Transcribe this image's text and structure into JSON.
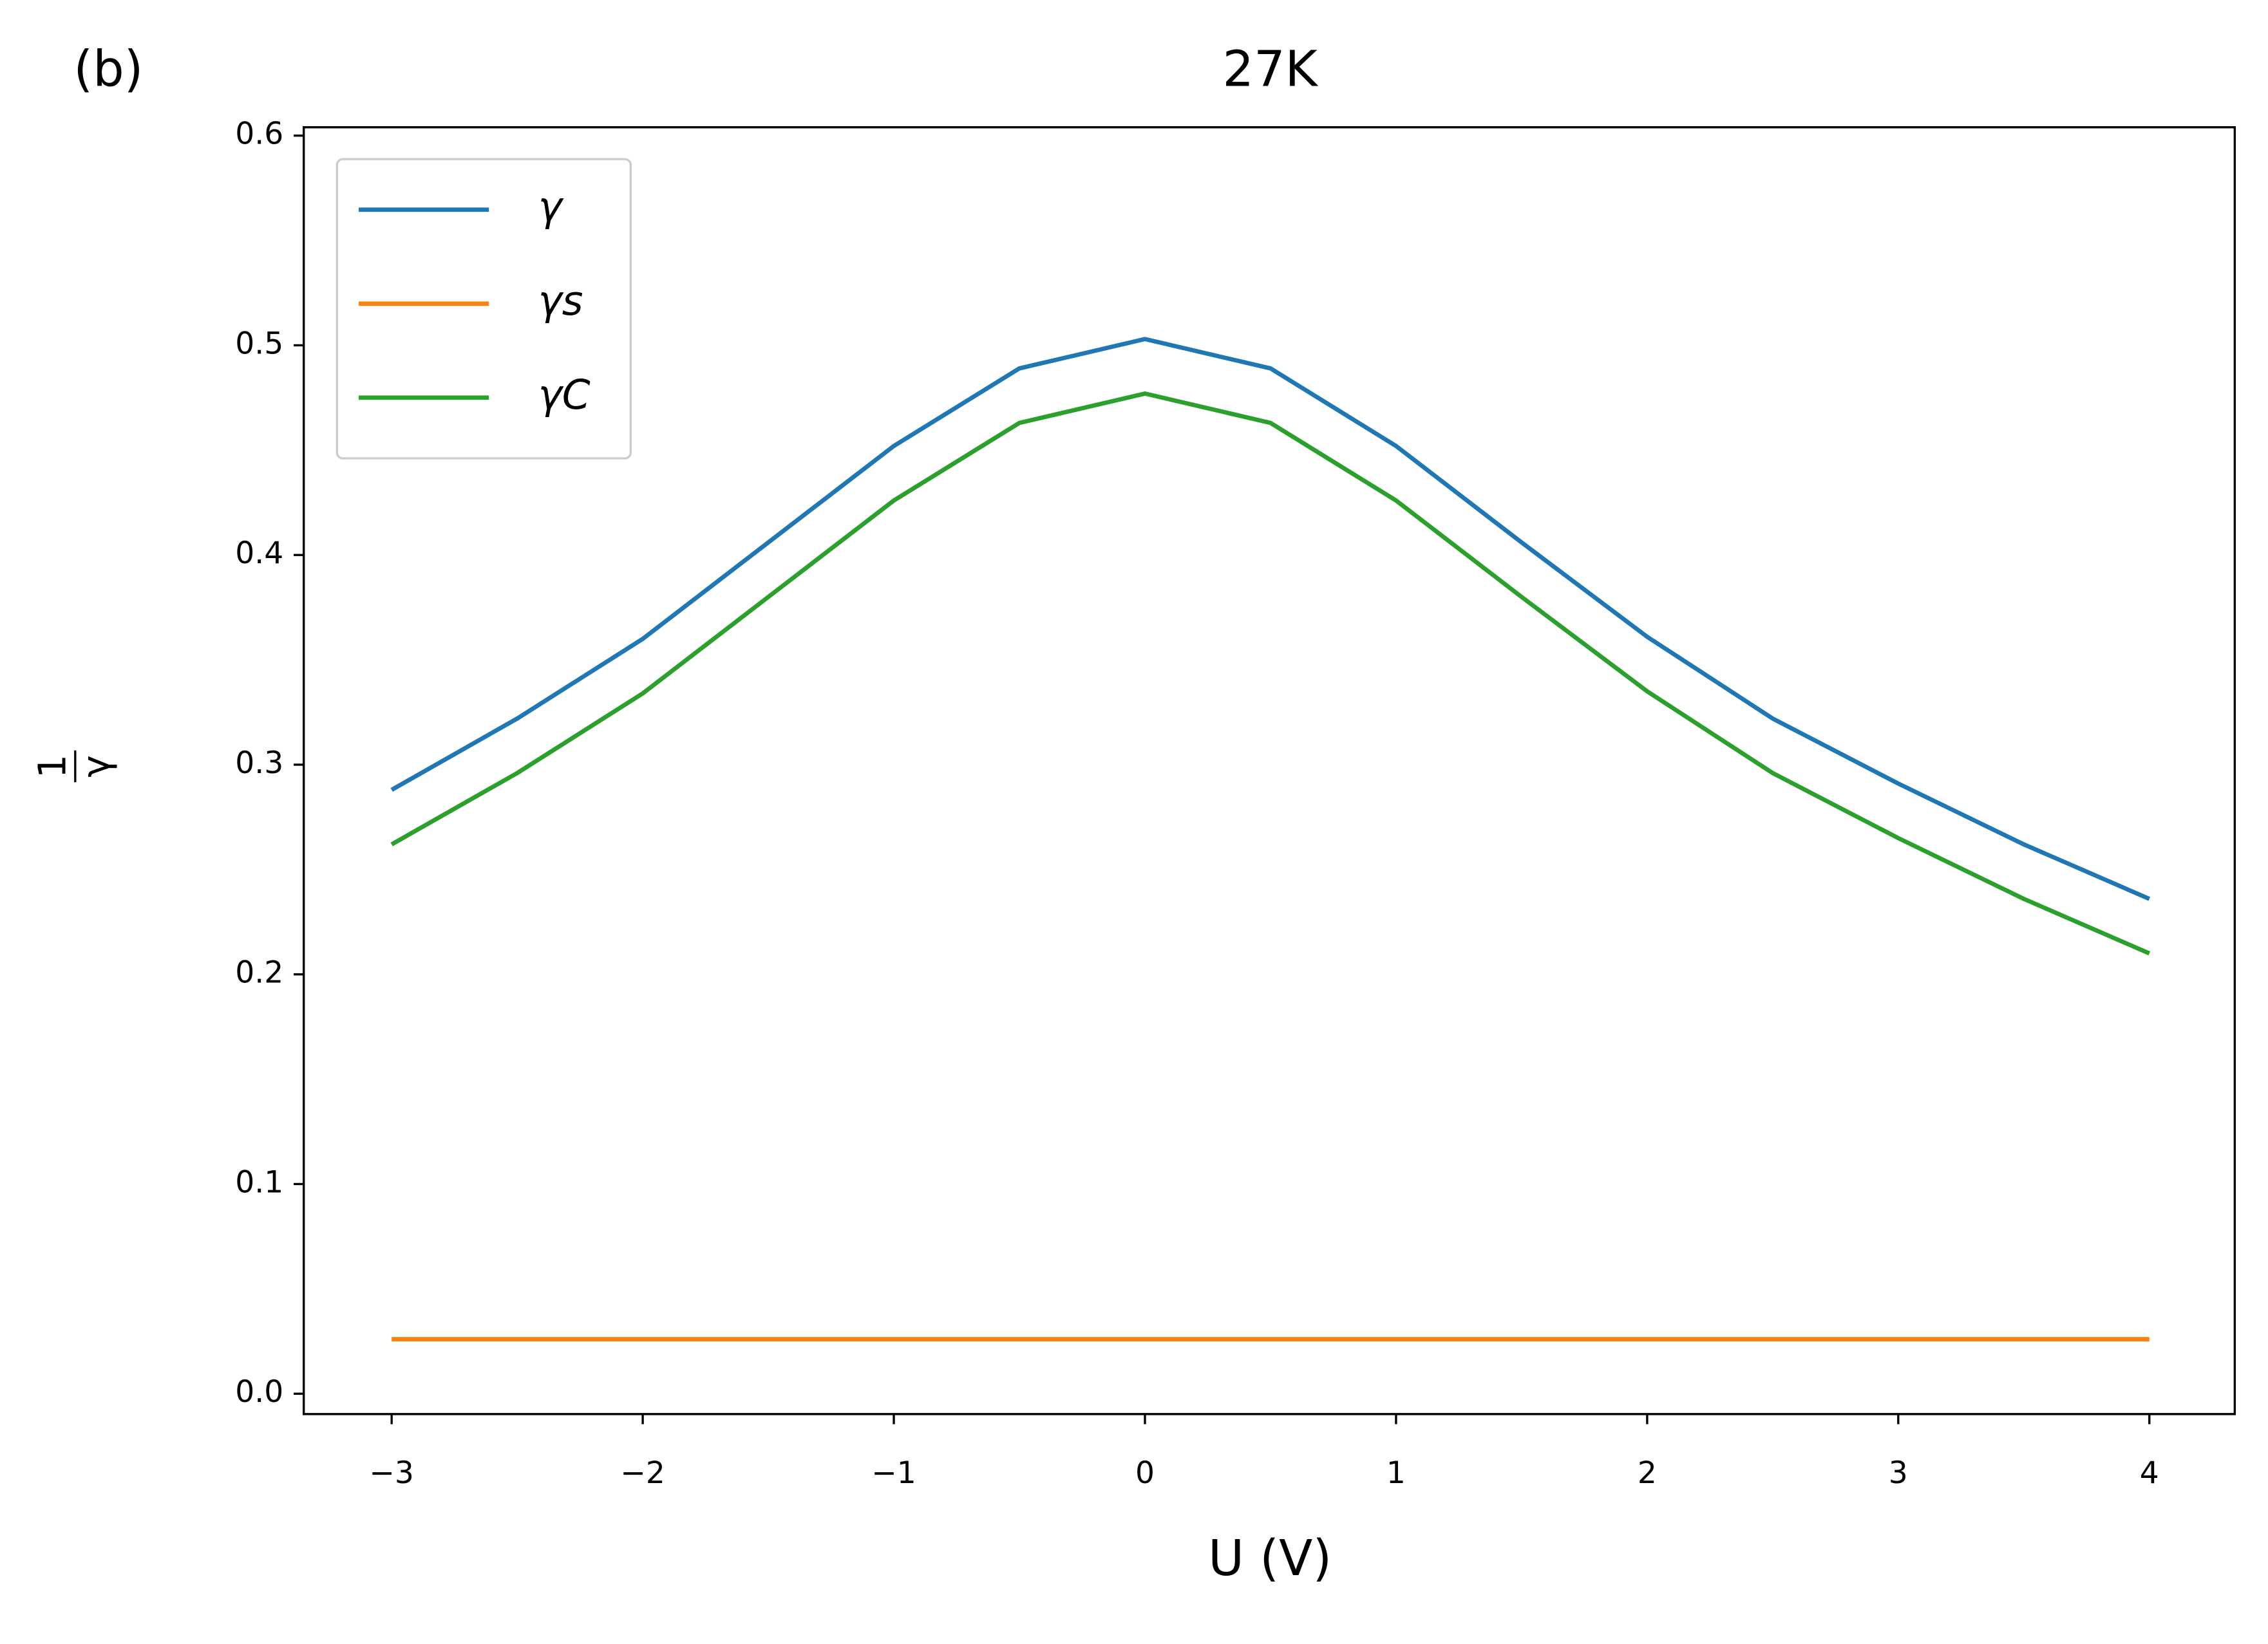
{
  "chart_data": {
    "type": "line",
    "panel_label": "(b)",
    "title": "27K",
    "x_label": "U (V)",
    "y_label": {
      "numerator": "1",
      "denominator": "γ"
    },
    "x": [
      -3,
      -2.5,
      -2,
      -1.5,
      -1,
      -0.5,
      0,
      0.5,
      1,
      1.5,
      2,
      2.5,
      3,
      3.5,
      4
    ],
    "series": [
      {
        "name": "γ",
        "color": "#1f77b4",
        "values": [
          0.288,
          0.322,
          0.36,
          0.406,
          0.452,
          0.489,
          0.503,
          0.489,
          0.452,
          0.406,
          0.361,
          0.322,
          0.291,
          0.262,
          0.236
        ]
      },
      {
        "name": "γs",
        "color": "#ff7f0e",
        "values": [
          0.026,
          0.026,
          0.026,
          0.026,
          0.026,
          0.026,
          0.026,
          0.026,
          0.026,
          0.026,
          0.026,
          0.026,
          0.026,
          0.026,
          0.026
        ]
      },
      {
        "name": "γC",
        "color": "#2ca02c",
        "values": [
          0.262,
          0.296,
          0.334,
          0.38,
          0.426,
          0.463,
          0.477,
          0.463,
          0.426,
          0.38,
          0.335,
          0.296,
          0.265,
          0.236,
          0.21
        ]
      }
    ],
    "xlim": [
      -3.35,
      4.34
    ],
    "ylim": [
      -0.0097,
      0.604
    ],
    "xticks": [
      {
        "value": -3,
        "label": "−3"
      },
      {
        "value": -2,
        "label": "−2"
      },
      {
        "value": -1,
        "label": "−1"
      },
      0,
      1,
      2,
      3,
      4
    ],
    "yticks": [
      {
        "value": 0,
        "label": "0.0"
      },
      0.1,
      0.2,
      0.3,
      0.4,
      0.5,
      0.6
    ],
    "grid": false,
    "legend": "upper left"
  }
}
